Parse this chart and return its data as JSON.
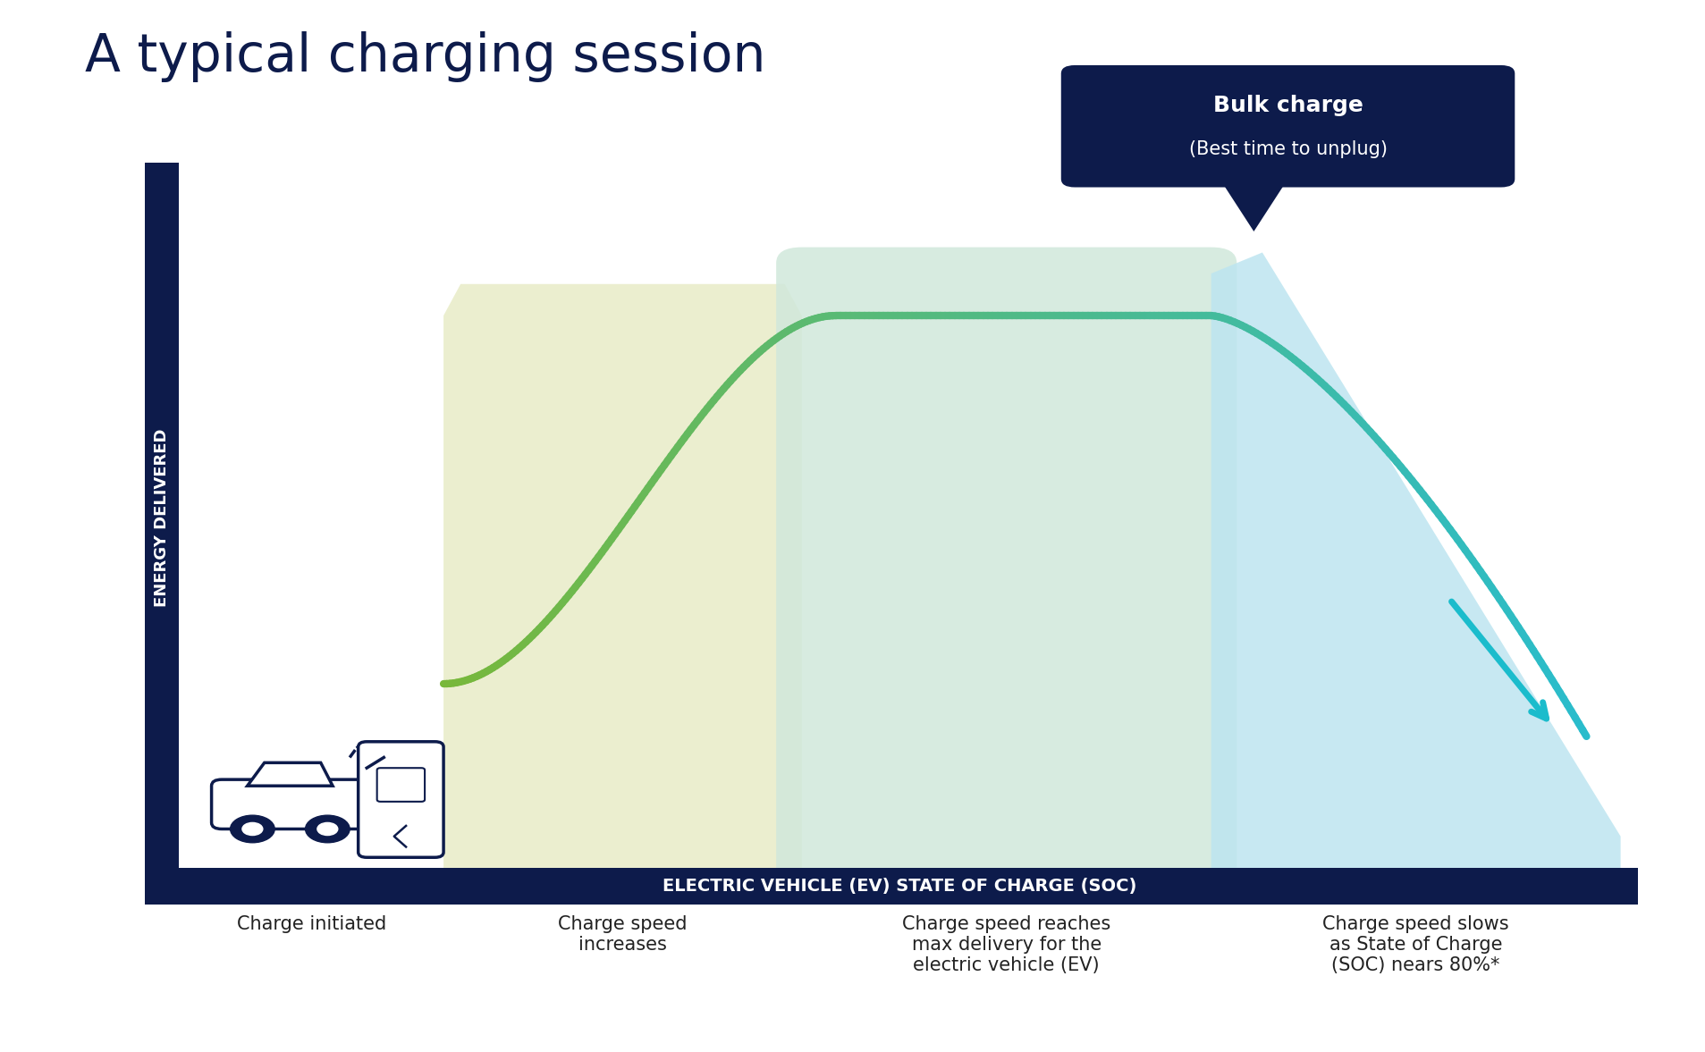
{
  "title": "A typical charging session",
  "title_color": "#0d1b4b",
  "title_fontsize": 42,
  "bg_color": "#ffffff",
  "axis_bar_color": "#0d1b4b",
  "x_label": "ELECTRIC VEHICLE (EV) STATE OF CHARGE (SOC)",
  "y_label": "ENERGY DELIVERED",
  "ylabel_fontsize": 13,
  "xlabel_fontsize": 14,
  "zone1_label": "Charge initiated",
  "zone2_label": "Charge speed\nincreases",
  "zone3_label": "Charge speed reaches\nmax delivery for the\nelectric vehicle (EV)",
  "zone4_label": "Charge speed slows\nas State of Charge\n(SOC) nears 80%*",
  "zone_label_fontsize": 15,
  "bulk_charge_title": "Bulk charge",
  "bulk_charge_subtitle": "(Best time to unplug)",
  "bulk_charge_bg": "#0d1b4b",
  "bulk_charge_fontsize": 18,
  "zone2_bg": "#e9edca",
  "zone3_bg": "#d0e8db",
  "zone4_bg": "#bde5f0",
  "line_color_start": "#78b83a",
  "line_color_end": "#2abccc",
  "line_width": 6,
  "arrow_color": "#1bbccc",
  "arrow_lw": 5
}
